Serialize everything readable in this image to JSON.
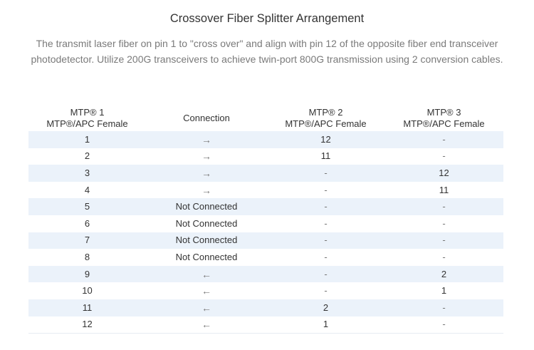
{
  "title": "Crossover Fiber Splitter Arrangement",
  "description": "The transmit laser fiber on pin 1 to \"cross over\" and align with pin 12 of the opposite fiber end transceiver photodetector. Utilize 200G transceivers to achieve twin-port 800G transmission using 2 conversion cables.",
  "table": {
    "headers": [
      {
        "line1": "MTP® 1",
        "line2": "MTP®/APC Female"
      },
      {
        "line1": "Connection",
        "line2": ""
      },
      {
        "line1": "MTP® 2",
        "line2": "MTP®/APC Female"
      },
      {
        "line1": "MTP® 3",
        "line2": "MTP®/APC Female"
      }
    ],
    "rows": [
      [
        "1",
        "→",
        "12",
        "-"
      ],
      [
        "2",
        "→",
        "11",
        "-"
      ],
      [
        "3",
        "→",
        "-",
        "12"
      ],
      [
        "4",
        "→",
        "-",
        "11"
      ],
      [
        "5",
        "Not Connected",
        "-",
        "-"
      ],
      [
        "6",
        "Not Connected",
        "-",
        "-"
      ],
      [
        "7",
        "Not Connected",
        "-",
        "-"
      ],
      [
        "8",
        "Not Connected",
        "-",
        "-"
      ],
      [
        "9",
        "←",
        "-",
        "2"
      ],
      [
        "10",
        "←",
        "-",
        "1"
      ],
      [
        "11",
        "←",
        "2",
        "-"
      ],
      [
        "12",
        "←",
        "1",
        "-"
      ]
    ]
  },
  "colors": {
    "stripe": "#ebf2fa",
    "text": "#333333",
    "description_text": "#7a7a7a"
  }
}
